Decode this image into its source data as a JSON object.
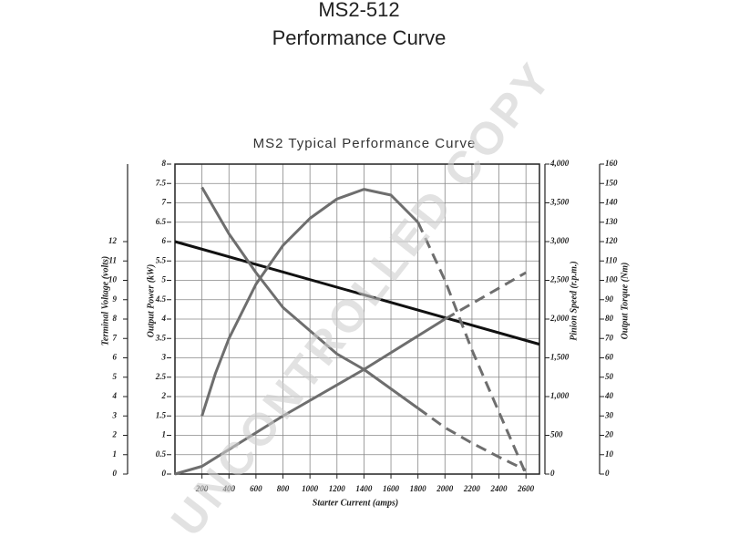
{
  "title": "MS2-512",
  "subtitle": "Performance Curve",
  "chart_data": {
    "type": "line",
    "title": "MS2 Typical Performance Curve",
    "x_label": "Starter Current  (amps)",
    "xlim": [
      0,
      2700
    ],
    "xticks": [
      200,
      400,
      600,
      800,
      1000,
      1200,
      1400,
      1600,
      1800,
      2000,
      2200,
      2400,
      2600
    ],
    "grid": true,
    "axes": [
      {
        "label": "Output Power (kW)",
        "side": "left",
        "lim": [
          0,
          8
        ],
        "ticks": [
          0,
          0.5,
          1,
          1.5,
          2,
          2.5,
          3,
          3.5,
          4,
          4.5,
          5,
          5.5,
          6,
          6.5,
          7,
          7.5,
          8
        ]
      },
      {
        "label": "Terminal Voltage (volts)",
        "side": "left",
        "lim": [
          0,
          16
        ],
        "ticks": [
          0,
          1,
          2,
          3,
          4,
          5,
          6,
          7,
          8,
          9,
          10,
          11,
          12
        ]
      },
      {
        "label": "Pinion Speed (r.p.m.)",
        "side": "right",
        "lim": [
          0,
          4000
        ],
        "ticks": [
          0,
          500,
          {
            "value": 1000,
            "label": "1,000"
          },
          {
            "value": 1500,
            "label": "1,500"
          },
          {
            "value": 2000,
            "label": "2,000"
          },
          {
            "value": 2500,
            "label": "2,500"
          },
          {
            "value": 3000,
            "label": "3,000"
          },
          {
            "value": 3500,
            "label": "3,500"
          },
          {
            "value": 4000,
            "label": "4,000"
          }
        ]
      },
      {
        "label": "Output Torque (Nm)",
        "side": "right",
        "lim": [
          0,
          160
        ],
        "ticks": [
          0,
          10,
          20,
          30,
          40,
          50,
          60,
          70,
          80,
          90,
          100,
          110,
          120,
          130,
          140,
          150,
          160
        ]
      }
    ],
    "series": [
      {
        "axis": 1,
        "color": "#111111",
        "dashed": false,
        "x": [
          0,
          2700
        ],
        "values": [
          12,
          6.7
        ]
      },
      {
        "axis": 2,
        "color": "#6e6e6e",
        "dashed": false,
        "x": [
          200,
          400,
          600,
          800,
          1000,
          1200,
          1400,
          1600,
          1800
        ],
        "values": [
          3700,
          3100,
          2600,
          2150,
          1850,
          1550,
          1350,
          1100,
          850
        ]
      },
      {
        "axis": 2,
        "color": "#6e6e6e",
        "dashed": true,
        "x": [
          1800,
          2000,
          2200,
          2400,
          2600
        ],
        "values": [
          850,
          600,
          400,
          220,
          50
        ]
      },
      {
        "axis": 0,
        "color": "#6e6e6e",
        "dashed": false,
        "x": [
          200,
          300,
          400,
          600,
          800,
          1000,
          1200,
          1400,
          1600,
          1800
        ],
        "values": [
          1.5,
          2.6,
          3.5,
          4.9,
          5.9,
          6.6,
          7.1,
          7.35,
          7.2,
          6.5
        ]
      },
      {
        "axis": 0,
        "color": "#6e6e6e",
        "dashed": true,
        "x": [
          1800,
          2000,
          2200,
          2400,
          2600
        ],
        "values": [
          6.5,
          5.0,
          3.2,
          1.6,
          0
        ]
      },
      {
        "axis": 3,
        "color": "#6e6e6e",
        "dashed": false,
        "x": [
          0,
          200,
          800,
          1400,
          2000
        ],
        "values": [
          0,
          4,
          30,
          54,
          80
        ]
      },
      {
        "axis": 3,
        "color": "#6e6e6e",
        "dashed": true,
        "x": [
          2000,
          2300,
          2600
        ],
        "values": [
          80,
          92,
          104
        ]
      }
    ]
  },
  "watermark": "UNCONTROLLED COPY"
}
